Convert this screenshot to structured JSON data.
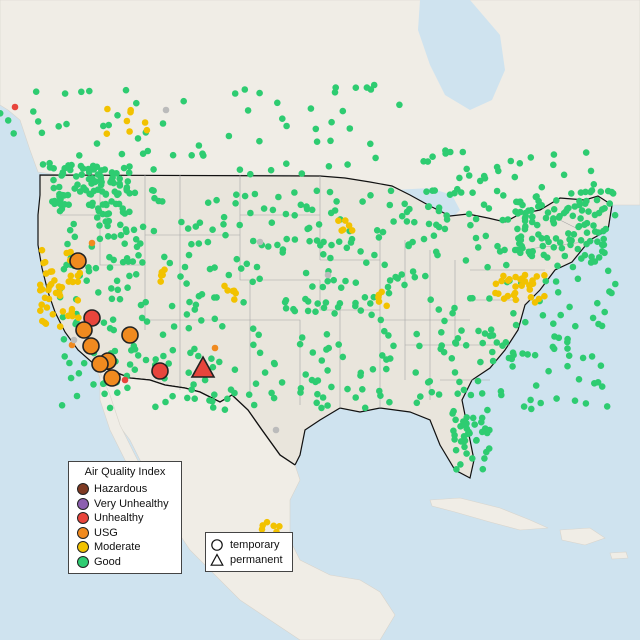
{
  "legend": {
    "title": "Air Quality Index",
    "items": [
      {
        "label": "Hazardous",
        "color": "#7e3a23"
      },
      {
        "label": "Very Unhealthy",
        "color": "#8c5fb0"
      },
      {
        "label": "Unhealthy",
        "color": "#e8453c"
      },
      {
        "label": "USG",
        "color": "#f08a1f"
      },
      {
        "label": "Moderate",
        "color": "#f2c200"
      },
      {
        "label": "Good",
        "color": "#2ecc71"
      }
    ]
  },
  "shape_legend": {
    "items": [
      {
        "label": "temporary",
        "shape": "circle-icon"
      },
      {
        "label": "permanent",
        "shape": "triangle-icon"
      }
    ]
  },
  "colors": {
    "ocean": "#cfe3ef",
    "land": "#ece9e1",
    "foreign_land": "#f2f0ec",
    "state_border": "#9a9a9a",
    "country_border": "#111111",
    "no_data": "#bbbbbb"
  }
}
